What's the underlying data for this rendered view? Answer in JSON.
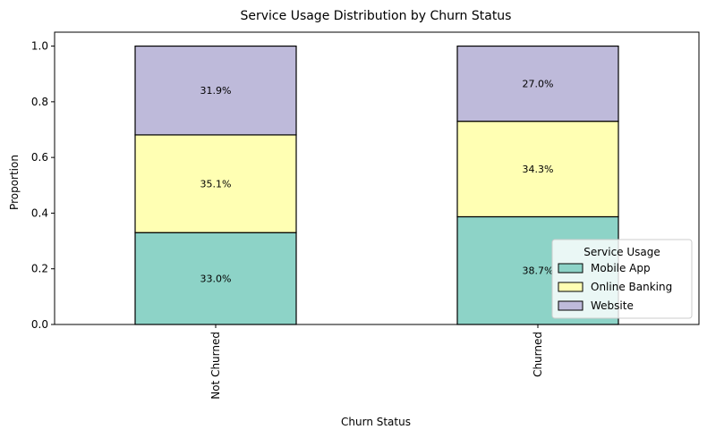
{
  "chart_data": {
    "type": "bar",
    "stacked": true,
    "title": "Service Usage Distribution by Churn Status",
    "xlabel": "Churn Status",
    "ylabel": "Proportion",
    "ylim": [
      0,
      1.05
    ],
    "yticks": [
      "0.0",
      "0.2",
      "0.4",
      "0.6",
      "0.8",
      "1.0"
    ],
    "categories": [
      "Not Churned",
      "Churned"
    ],
    "series": [
      {
        "name": "Mobile App",
        "values": [
          0.33,
          0.387
        ],
        "labels": [
          "33.0%",
          "38.7%"
        ],
        "color": "#8dd3c7"
      },
      {
        "name": "Online Banking",
        "values": [
          0.351,
          0.343
        ],
        "labels": [
          "35.1%",
          "34.3%"
        ],
        "color": "#ffffb3"
      },
      {
        "name": "Website",
        "values": [
          0.319,
          0.27
        ],
        "labels": [
          "31.9%",
          "27.0%"
        ],
        "color": "#bebada"
      }
    ],
    "legend": {
      "title": "Service Usage",
      "placement": "lower-right"
    },
    "grid": false
  }
}
